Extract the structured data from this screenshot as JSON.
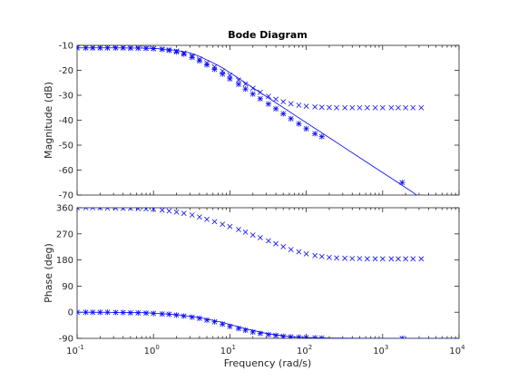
{
  "colors": {
    "series": "#0000ff",
    "axis": "#262626",
    "background": "#ffffff"
  },
  "chart_data": {
    "type": "line",
    "title": "Bode Diagram",
    "xlabel": "Frequency  (rad/s)",
    "xscale": "log",
    "xlim": [
      0.1,
      10000
    ],
    "x_tick_labels": [
      {
        "base": "10",
        "exp": "-1"
      },
      {
        "base": "10",
        "exp": "0"
      },
      {
        "base": "10",
        "exp": "1"
      },
      {
        "base": "10",
        "exp": "2"
      },
      {
        "base": "10",
        "exp": "3"
      },
      {
        "base": "10",
        "exp": "4"
      }
    ],
    "grid": false,
    "legend": false,
    "panels": [
      {
        "ylabel": "Magnitude (dB)",
        "ylim": [
          -70,
          -10
        ],
        "yticks": [
          -70,
          -60,
          -50,
          -40,
          -30,
          -20,
          -10
        ],
        "series": [
          {
            "marker": "line",
            "x": [
              0.1,
              0.3,
              0.7,
              1.0,
              1.5,
              2.0,
              3.0,
              4.0,
              6.0,
              8.0,
              12,
              20,
              40,
              100,
              200,
              500,
              1000,
              2000,
              3500
            ],
            "y": [
              -11.0,
              -11.0,
              -11.1,
              -11.2,
              -11.6,
              -12.0,
              -13.0,
              -14.4,
              -17.0,
              -19.0,
              -22.5,
              -27.0,
              -33.0,
              -41.0,
              -47.0,
              -55.0,
              -61.0,
              -67.0,
              -72.0
            ]
          },
          {
            "marker": "*",
            "x": [
              0.1,
              0.13,
              0.16,
              0.2,
              0.25,
              0.32,
              0.4,
              0.5,
              0.63,
              0.8,
              1.0,
              1.3,
              1.6,
              2.0,
              2.5,
              3.2,
              4.0,
              5.0,
              6.3,
              8.0,
              10,
              13,
              16,
              20,
              25,
              32,
              40,
              50,
              63,
              80,
              100,
              130,
              160,
              1800
            ],
            "y": [
              -11.0,
              -11.0,
              -11.0,
              -11.0,
              -11.0,
              -11.0,
              -11.0,
              -11.1,
              -11.1,
              -11.2,
              -11.3,
              -11.6,
              -12.0,
              -12.6,
              -13.5,
              -14.8,
              -16.2,
              -17.8,
              -19.6,
              -21.5,
              -23.4,
              -25.6,
              -27.5,
              -29.5,
              -31.4,
              -33.5,
              -35.4,
              -37.4,
              -39.4,
              -41.4,
              -43.4,
              -45.4,
              -46.6,
              -65.0
            ]
          },
          {
            "marker": "x",
            "x": [
              0.1,
              0.13,
              0.16,
              0.2,
              0.25,
              0.32,
              0.4,
              0.5,
              0.63,
              0.8,
              1.0,
              1.3,
              1.6,
              2.0,
              2.5,
              3.2,
              4.0,
              5.0,
              6.3,
              8.0,
              10,
              13,
              16,
              20,
              25,
              32,
              40,
              50,
              63,
              80,
              100,
              130,
              160,
              200,
              250,
              320,
              400,
              500,
              630,
              800,
              1000,
              1300,
              1600,
              2000,
              2500,
              3200
            ],
            "y": [
              -11.0,
              -11.0,
              -11.0,
              -11.0,
              -11.0,
              -11.0,
              -11.0,
              -11.1,
              -11.1,
              -11.2,
              -11.3,
              -11.5,
              -11.8,
              -12.3,
              -13.1,
              -14.2,
              -15.5,
              -17.0,
              -18.6,
              -20.3,
              -22.0,
              -23.9,
              -25.5,
              -27.2,
              -28.8,
              -30.4,
              -31.6,
              -32.6,
              -33.4,
              -34.0,
              -34.4,
              -34.7,
              -34.8,
              -34.9,
              -35.0,
              -35.0,
              -35.0,
              -35.0,
              -35.0,
              -35.0,
              -35.0,
              -35.0,
              -35.0,
              -35.0,
              -35.0,
              -35.0
            ]
          }
        ]
      },
      {
        "ylabel": "Phase (deg)",
        "ylim": [
          -90,
          360
        ],
        "yticks": [
          -90,
          0,
          90,
          180,
          270,
          360
        ],
        "series": [
          {
            "marker": "line",
            "x": [
              0.1,
              0.3,
              0.7,
              1.0,
              2.0,
              4.0,
              8.0,
              15,
              30,
              60,
              100,
              200,
              1000,
              10000
            ],
            "y": [
              0,
              -0.5,
              -1,
              -3,
              -8,
              -18,
              -35,
              -55,
              -73,
              -84,
              -87,
              -89,
              -90,
              -90
            ]
          },
          {
            "marker": "*",
            "x": [
              0.1,
              0.13,
              0.16,
              0.2,
              0.25,
              0.32,
              0.4,
              0.5,
              0.63,
              0.8,
              1.0,
              1.3,
              1.6,
              2.0,
              2.5,
              3.2,
              4.0,
              5.0,
              6.3,
              8.0,
              10,
              13,
              16,
              20,
              25,
              32,
              40,
              50,
              63,
              80,
              100,
              130,
              160,
              1800
            ],
            "y": [
              0,
              0,
              0,
              0,
              0,
              -1,
              -1,
              -2,
              -2,
              -3,
              -4,
              -6,
              -7,
              -10,
              -13,
              -17,
              -21,
              -27,
              -33,
              -41,
              -49,
              -56,
              -62,
              -68,
              -73,
              -77,
              -80,
              -83,
              -85,
              -86,
              -87,
              -88,
              -89,
              -90
            ]
          },
          {
            "marker": "x",
            "x": [
              0.1,
              0.13,
              0.16,
              0.2,
              0.25,
              0.32,
              0.4,
              0.5,
              0.63,
              0.8,
              1.0,
              1.3,
              1.6,
              2.0,
              2.5,
              3.2,
              4.0,
              5.0,
              6.3,
              8.0,
              10,
              13,
              16,
              20,
              25,
              32,
              40,
              50,
              63,
              80,
              100,
              130,
              160,
              200,
              250,
              320,
              400,
              500,
              630,
              800,
              1000,
              1300,
              1600,
              2000,
              2500,
              3200
            ],
            "y": [
              360,
              360,
              360,
              360,
              359,
              359,
              358,
              358,
              357,
              356,
              355,
              352,
              349,
              345,
              341,
              335,
              328,
              320,
              312,
              303,
              295,
              285,
              276,
              266,
              257,
              246,
              236,
              226,
              216,
              208,
              201,
              195,
              192,
              189,
              187,
              186,
              185,
              185,
              184,
              184,
              184,
              184,
              184,
              184,
              184,
              184
            ]
          }
        ]
      }
    ]
  }
}
